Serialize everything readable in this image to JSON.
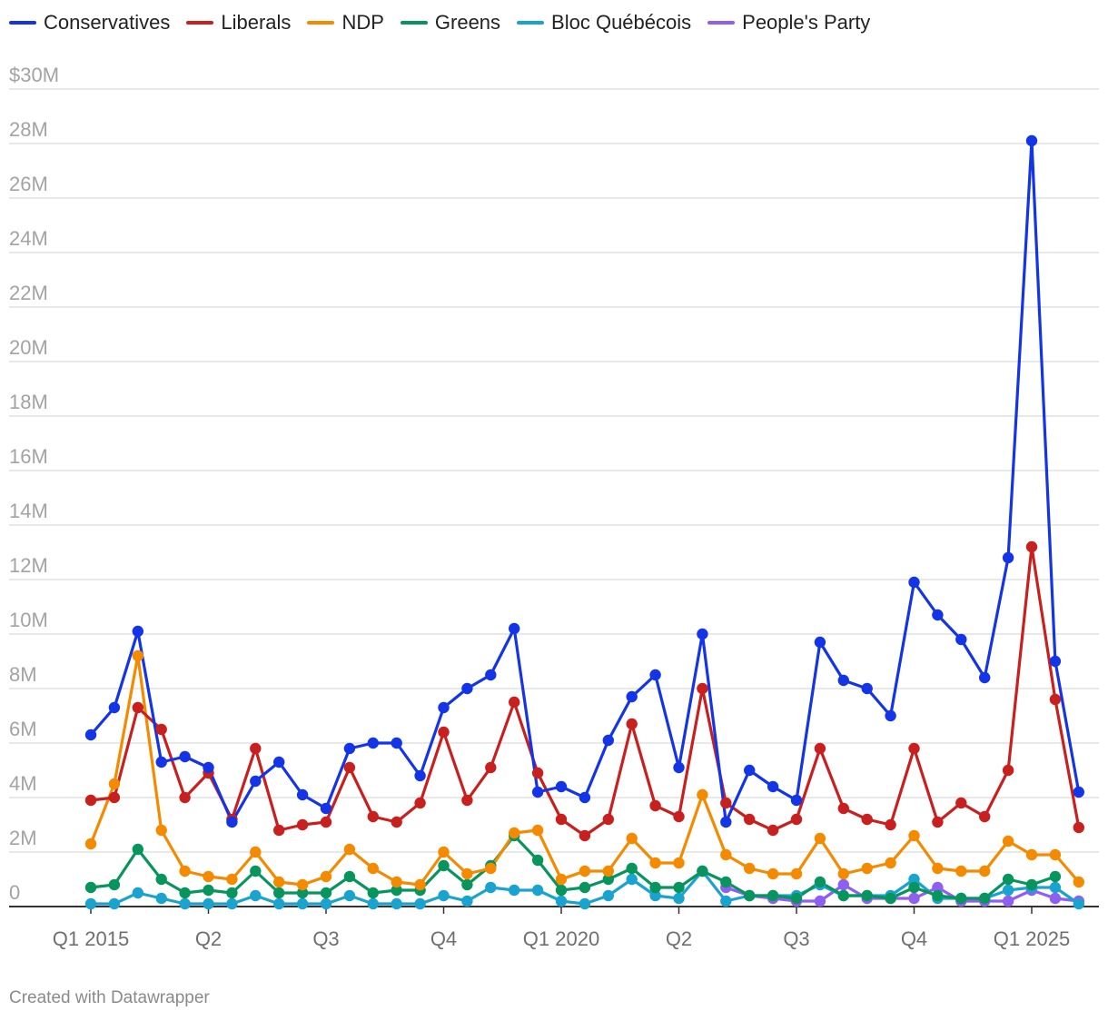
{
  "chart_data": {
    "type": "line",
    "title": "",
    "xlabel": "",
    "ylabel": "",
    "ylim": [
      0,
      30000000
    ],
    "y_ticks": [
      0,
      2000000,
      4000000,
      6000000,
      8000000,
      10000000,
      12000000,
      14000000,
      16000000,
      18000000,
      20000000,
      22000000,
      24000000,
      26000000,
      28000000,
      30000000
    ],
    "y_tick_labels": [
      "0",
      "2M",
      "4M",
      "6M",
      "8M",
      "10M",
      "12M",
      "14M",
      "16M",
      "18M",
      "20M",
      "22M",
      "24M",
      "26M",
      "28M",
      "$30M"
    ],
    "x_ticks": [
      {
        "index": 0,
        "label": "Q1 2015"
      },
      {
        "index": 5,
        "label": "Q2"
      },
      {
        "index": 10,
        "label": "Q3"
      },
      {
        "index": 15,
        "label": "Q4"
      },
      {
        "index": 20,
        "label": "Q1 2020"
      },
      {
        "index": 25,
        "label": "Q2"
      },
      {
        "index": 30,
        "label": "Q3"
      },
      {
        "index": 35,
        "label": "Q4"
      },
      {
        "index": 40,
        "label": "Q1 2025"
      }
    ],
    "n_periods": 43,
    "series": [
      {
        "name": "Conservatives",
        "color": "#1434e8",
        "start": 0,
        "values": [
          6300000,
          7300000,
          10100000,
          5300000,
          5500000,
          5100000,
          3100000,
          4600000,
          5300000,
          4100000,
          3600000,
          5800000,
          6000000,
          6000000,
          4800000,
          7300000,
          8000000,
          8500000,
          10200000,
          4200000,
          4400000,
          4000000,
          6100000,
          7700000,
          8500000,
          5100000,
          10000000,
          3100000,
          5000000,
          4400000,
          3900000,
          9700000,
          8300000,
          8000000,
          7000000,
          11900000,
          10700000,
          9800000,
          8400000,
          12800000,
          28100000,
          9000000,
          4200000
        ]
      },
      {
        "name": "Liberals",
        "color": "#c8201f",
        "start": 0,
        "values": [
          3900000,
          4000000,
          7300000,
          6500000,
          4000000,
          4900000,
          3200000,
          5800000,
          2800000,
          3000000,
          3100000,
          5100000,
          3300000,
          3100000,
          3800000,
          6400000,
          3900000,
          5100000,
          7500000,
          4900000,
          3200000,
          2600000,
          3200000,
          6700000,
          3700000,
          3300000,
          8000000,
          3800000,
          3200000,
          2800000,
          3200000,
          5800000,
          3600000,
          3200000,
          3000000,
          5800000,
          3100000,
          3800000,
          3300000,
          5000000,
          13200000,
          7600000,
          2900000
        ]
      },
      {
        "name": "NDP",
        "color": "#f48a00",
        "start": 0,
        "values": [
          2300000,
          4500000,
          9200000,
          2800000,
          1300000,
          1100000,
          1000000,
          2000000,
          900000,
          800000,
          1100000,
          2100000,
          1400000,
          900000,
          800000,
          2000000,
          1200000,
          1400000,
          2700000,
          2800000,
          1000000,
          1300000,
          1300000,
          2500000,
          1600000,
          1600000,
          4100000,
          1900000,
          1400000,
          1200000,
          1200000,
          2500000,
          1200000,
          1400000,
          1600000,
          2600000,
          1400000,
          1300000,
          1300000,
          2400000,
          1900000,
          1900000,
          900000
        ]
      },
      {
        "name": "Greens",
        "color": "#08955d",
        "start": 0,
        "values": [
          700000,
          800000,
          2100000,
          1000000,
          500000,
          600000,
          500000,
          1300000,
          500000,
          500000,
          500000,
          1100000,
          500000,
          600000,
          600000,
          1500000,
          800000,
          1500000,
          2600000,
          1700000,
          600000,
          700000,
          1000000,
          1400000,
          700000,
          700000,
          1300000,
          900000,
          400000,
          400000,
          300000,
          900000,
          400000,
          400000,
          300000,
          700000,
          400000,
          300000,
          300000,
          1000000,
          800000,
          1100000,
          null
        ]
      },
      {
        "name": "Bloc Québécois",
        "color": "#1aa3cf",
        "start": 0,
        "values": [
          100000,
          100000,
          500000,
          300000,
          100000,
          100000,
          100000,
          400000,
          100000,
          100000,
          100000,
          400000,
          100000,
          100000,
          100000,
          400000,
          200000,
          700000,
          600000,
          600000,
          200000,
          100000,
          400000,
          1000000,
          400000,
          300000,
          1300000,
          200000,
          400000,
          400000,
          400000,
          800000,
          400000,
          400000,
          400000,
          1000000,
          300000,
          300000,
          300000,
          600000,
          700000,
          700000,
          100000
        ]
      },
      {
        "name": "People's Party",
        "color": "#8f5ff2",
        "start": 27,
        "values": [
          700000,
          400000,
          300000,
          200000,
          200000,
          800000,
          300000,
          300000,
          300000,
          700000,
          200000,
          200000,
          200000,
          600000,
          300000,
          200000
        ]
      }
    ]
  },
  "footer": {
    "credit": "Created with Datawrapper"
  }
}
